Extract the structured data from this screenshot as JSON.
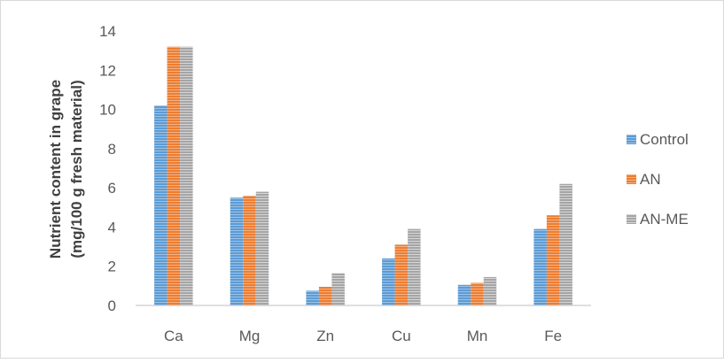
{
  "chart_data": {
    "type": "bar",
    "categories": [
      "Ca",
      "Mg",
      "Zn",
      "Cu",
      "Mn",
      "Fe"
    ],
    "series": [
      {
        "name": "Control",
        "values": [
          10.2,
          5.5,
          0.75,
          2.4,
          1.05,
          3.9
        ],
        "color": "#5B9BD5"
      },
      {
        "name": "AN",
        "values": [
          13.2,
          5.6,
          0.95,
          3.1,
          1.15,
          4.6
        ],
        "color": "#ED7D31"
      },
      {
        "name": "AN-ME",
        "values": [
          13.2,
          5.8,
          1.65,
          3.9,
          1.45,
          6.2
        ],
        "color": "#A5A5A5"
      }
    ],
    "ylabel_line1": "Nutrient content in grape",
    "ylabel_line2": "(mg/100 g fresh material)",
    "ylim": [
      0,
      14
    ],
    "yticks": [
      0,
      2,
      4,
      6,
      8,
      10,
      12,
      14
    ],
    "grid": false,
    "legend_position": "right"
  }
}
